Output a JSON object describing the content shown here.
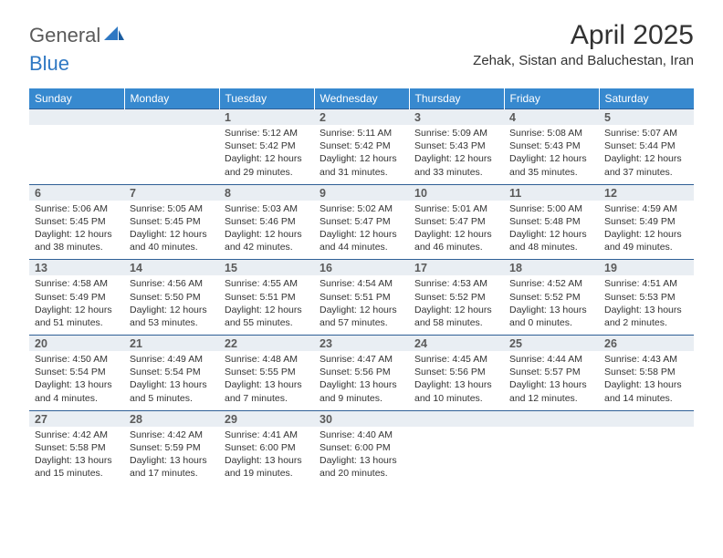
{
  "logo": {
    "text1": "General",
    "text2": "Blue"
  },
  "title": {
    "month": "April 2025",
    "location": "Zehak, Sistan and Baluchestan, Iran"
  },
  "colors": {
    "header_bg": "#3789cf",
    "header_text": "#ffffff",
    "daynum_bg": "#e9eef3",
    "border": "#2f5f96",
    "logo_gray": "#5a5a5a",
    "logo_blue": "#2f78c3"
  },
  "weekdays": [
    "Sunday",
    "Monday",
    "Tuesday",
    "Wednesday",
    "Thursday",
    "Friday",
    "Saturday"
  ],
  "weeks": [
    [
      null,
      null,
      {
        "n": "1",
        "sr": "5:12 AM",
        "ss": "5:42 PM",
        "dl": "12 hours and 29 minutes."
      },
      {
        "n": "2",
        "sr": "5:11 AM",
        "ss": "5:42 PM",
        "dl": "12 hours and 31 minutes."
      },
      {
        "n": "3",
        "sr": "5:09 AM",
        "ss": "5:43 PM",
        "dl": "12 hours and 33 minutes."
      },
      {
        "n": "4",
        "sr": "5:08 AM",
        "ss": "5:43 PM",
        "dl": "12 hours and 35 minutes."
      },
      {
        "n": "5",
        "sr": "5:07 AM",
        "ss": "5:44 PM",
        "dl": "12 hours and 37 minutes."
      }
    ],
    [
      {
        "n": "6",
        "sr": "5:06 AM",
        "ss": "5:45 PM",
        "dl": "12 hours and 38 minutes."
      },
      {
        "n": "7",
        "sr": "5:05 AM",
        "ss": "5:45 PM",
        "dl": "12 hours and 40 minutes."
      },
      {
        "n": "8",
        "sr": "5:03 AM",
        "ss": "5:46 PM",
        "dl": "12 hours and 42 minutes."
      },
      {
        "n": "9",
        "sr": "5:02 AM",
        "ss": "5:47 PM",
        "dl": "12 hours and 44 minutes."
      },
      {
        "n": "10",
        "sr": "5:01 AM",
        "ss": "5:47 PM",
        "dl": "12 hours and 46 minutes."
      },
      {
        "n": "11",
        "sr": "5:00 AM",
        "ss": "5:48 PM",
        "dl": "12 hours and 48 minutes."
      },
      {
        "n": "12",
        "sr": "4:59 AM",
        "ss": "5:49 PM",
        "dl": "12 hours and 49 minutes."
      }
    ],
    [
      {
        "n": "13",
        "sr": "4:58 AM",
        "ss": "5:49 PM",
        "dl": "12 hours and 51 minutes."
      },
      {
        "n": "14",
        "sr": "4:56 AM",
        "ss": "5:50 PM",
        "dl": "12 hours and 53 minutes."
      },
      {
        "n": "15",
        "sr": "4:55 AM",
        "ss": "5:51 PM",
        "dl": "12 hours and 55 minutes."
      },
      {
        "n": "16",
        "sr": "4:54 AM",
        "ss": "5:51 PM",
        "dl": "12 hours and 57 minutes."
      },
      {
        "n": "17",
        "sr": "4:53 AM",
        "ss": "5:52 PM",
        "dl": "12 hours and 58 minutes."
      },
      {
        "n": "18",
        "sr": "4:52 AM",
        "ss": "5:52 PM",
        "dl": "13 hours and 0 minutes."
      },
      {
        "n": "19",
        "sr": "4:51 AM",
        "ss": "5:53 PM",
        "dl": "13 hours and 2 minutes."
      }
    ],
    [
      {
        "n": "20",
        "sr": "4:50 AM",
        "ss": "5:54 PM",
        "dl": "13 hours and 4 minutes."
      },
      {
        "n": "21",
        "sr": "4:49 AM",
        "ss": "5:54 PM",
        "dl": "13 hours and 5 minutes."
      },
      {
        "n": "22",
        "sr": "4:48 AM",
        "ss": "5:55 PM",
        "dl": "13 hours and 7 minutes."
      },
      {
        "n": "23",
        "sr": "4:47 AM",
        "ss": "5:56 PM",
        "dl": "13 hours and 9 minutes."
      },
      {
        "n": "24",
        "sr": "4:45 AM",
        "ss": "5:56 PM",
        "dl": "13 hours and 10 minutes."
      },
      {
        "n": "25",
        "sr": "4:44 AM",
        "ss": "5:57 PM",
        "dl": "13 hours and 12 minutes."
      },
      {
        "n": "26",
        "sr": "4:43 AM",
        "ss": "5:58 PM",
        "dl": "13 hours and 14 minutes."
      }
    ],
    [
      {
        "n": "27",
        "sr": "4:42 AM",
        "ss": "5:58 PM",
        "dl": "13 hours and 15 minutes."
      },
      {
        "n": "28",
        "sr": "4:42 AM",
        "ss": "5:59 PM",
        "dl": "13 hours and 17 minutes."
      },
      {
        "n": "29",
        "sr": "4:41 AM",
        "ss": "6:00 PM",
        "dl": "13 hours and 19 minutes."
      },
      {
        "n": "30",
        "sr": "4:40 AM",
        "ss": "6:00 PM",
        "dl": "13 hours and 20 minutes."
      },
      null,
      null,
      null
    ]
  ],
  "labels": {
    "sunrise": "Sunrise:",
    "sunset": "Sunset:",
    "daylight": "Daylight:"
  }
}
